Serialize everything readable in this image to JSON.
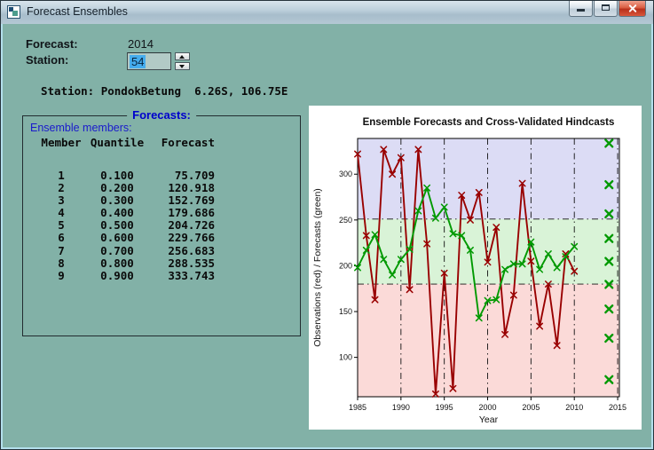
{
  "window": {
    "title": "Forecast Ensembles"
  },
  "controls": {
    "forecast_label": "Forecast:",
    "forecast_value": "2014",
    "station_label": "Station:",
    "station_value": "54",
    "station_info": "Station: PondokBetung  6.26S, 106.75E"
  },
  "ensemble": {
    "group_title": "Forecasts:",
    "subtitle": "Ensemble members:",
    "columns": [
      "Member",
      "Quantile",
      "Forecast"
    ],
    "rows": [
      {
        "member": "1",
        "quantile": "0.100",
        "forecast": "75.709"
      },
      {
        "member": "2",
        "quantile": "0.200",
        "forecast": "120.918"
      },
      {
        "member": "3",
        "quantile": "0.300",
        "forecast": "152.769"
      },
      {
        "member": "4",
        "quantile": "0.400",
        "forecast": "179.686"
      },
      {
        "member": "5",
        "quantile": "0.500",
        "forecast": "204.726"
      },
      {
        "member": "6",
        "quantile": "0.600",
        "forecast": "229.766"
      },
      {
        "member": "7",
        "quantile": "0.700",
        "forecast": "256.683"
      },
      {
        "member": "8",
        "quantile": "0.800",
        "forecast": "288.535"
      },
      {
        "member": "9",
        "quantile": "0.900",
        "forecast": "333.743"
      }
    ]
  },
  "colors": {
    "window_background": "#82b1a7",
    "accent_text": "#0000cc",
    "selection_background": "#45aced",
    "close_button": "#c8402c",
    "observations_line": "#990000",
    "forecasts_line": "#009900"
  },
  "chart_data": {
    "type": "line",
    "title": "Ensemble Forecasts and Cross-Validated Hindcasts",
    "xlabel": "Year",
    "ylabel": "Observations (red) / Forecasts (green)",
    "xlim": [
      1985,
      2015.2
    ],
    "ylim": [
      57,
      339
    ],
    "xticks": [
      1985,
      1990,
      1995,
      2000,
      2005,
      2010,
      2015
    ],
    "yticks": [
      100,
      150,
      200,
      250,
      300
    ],
    "grid_x": [
      1990,
      1995,
      2000,
      2005,
      2010,
      2015
    ],
    "grid_y": [
      180,
      251
    ],
    "grid_style": "dash-dot",
    "zones": [
      {
        "from": 251,
        "to": 339,
        "color": "#dcdcf5",
        "meaning": "above-normal"
      },
      {
        "from": 180,
        "to": 251,
        "color": "#d9f3d7",
        "meaning": "normal"
      },
      {
        "from": 57,
        "to": 180,
        "color": "#fbdad8",
        "meaning": "below-normal"
      }
    ],
    "x": [
      1985,
      1986,
      1987,
      1988,
      1989,
      1990,
      1991,
      1992,
      1993,
      1994,
      1995,
      1996,
      1997,
      1998,
      1999,
      2000,
      2001,
      2002,
      2003,
      2004,
      2005,
      2006,
      2007,
      2008,
      2009,
      2010
    ],
    "series": [
      {
        "name": "observations",
        "color": "#990000",
        "values": [
          322,
          233,
          163,
          327,
          300,
          318,
          174,
          327,
          224,
          60,
          192,
          66,
          277,
          250,
          280,
          204,
          242,
          125,
          168,
          290,
          205,
          134,
          180,
          113,
          213,
          194
        ]
      },
      {
        "name": "cross-validated-hindcasts",
        "color": "#009900",
        "values": [
          198,
          217,
          234,
          207,
          190,
          207,
          218,
          260,
          285,
          252,
          264,
          235,
          233,
          217,
          143,
          162,
          163,
          196,
          202,
          202,
          226,
          196,
          213,
          198,
          210,
          221
        ]
      }
    ],
    "forecast_markers": {
      "name": "ensemble-forecasts-2014",
      "color": "#009900",
      "x": 2014,
      "values": [
        75.709,
        120.918,
        152.769,
        179.686,
        204.726,
        229.766,
        256.683,
        288.535,
        333.743
      ]
    }
  }
}
